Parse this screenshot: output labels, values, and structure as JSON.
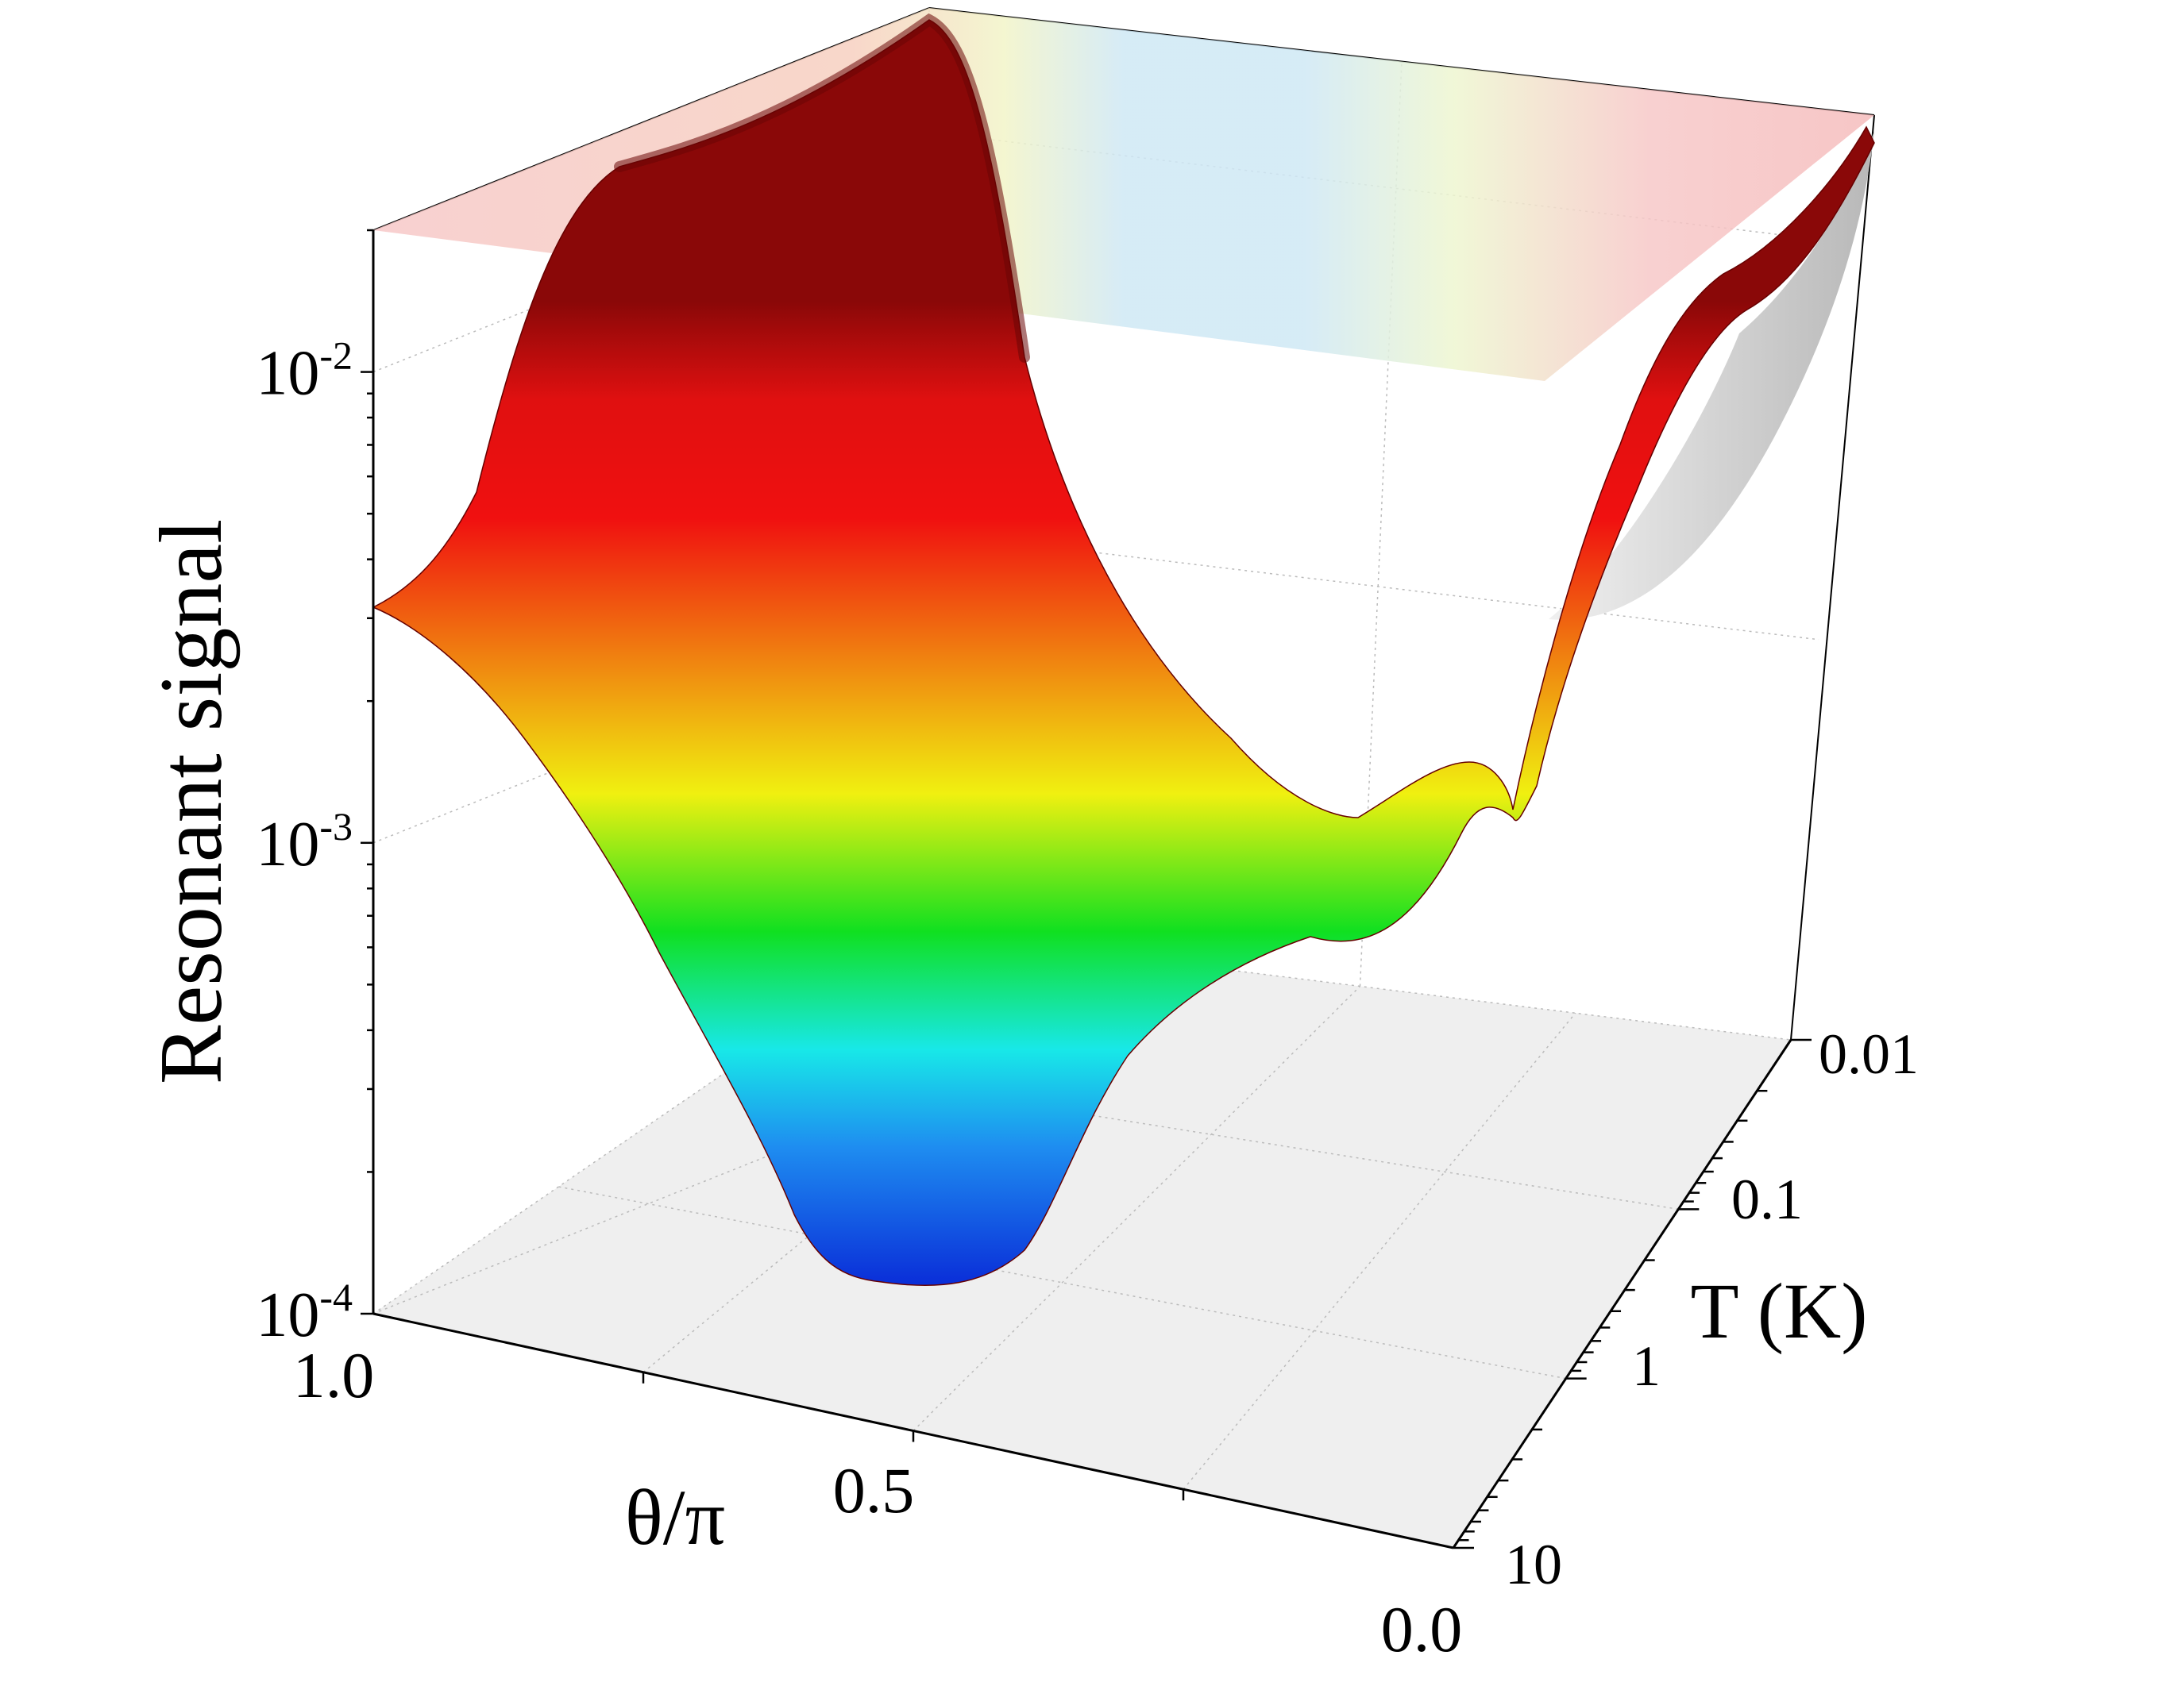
{
  "chart_data": {
    "type": "surface3d",
    "title": "",
    "zlabel": "Resonant signal",
    "xlabel": "θ/π",
    "ylabel": "T (K)",
    "z_scale": "log",
    "y_scale": "log",
    "xlim": [
      0.0,
      1.0
    ],
    "ylim": [
      0.01,
      10
    ],
    "zlim": [
      0.0001,
      0.02
    ],
    "x_tick_labels": [
      {
        "value": 1.0,
        "label": "1.0"
      },
      {
        "value": 0.5,
        "label": "0.5"
      },
      {
        "value": 0.0,
        "label": "0.0"
      }
    ],
    "y_tick_labels": [
      {
        "value": 0.01,
        "label": "0.01"
      },
      {
        "value": 0.1,
        "label": "0.1"
      },
      {
        "value": 1,
        "label": "1"
      },
      {
        "value": 10,
        "label": "10"
      }
    ],
    "z_tick_labels": [
      {
        "value": 0.01,
        "mantissa": "10",
        "exponent": "-2"
      },
      {
        "value": 0.001,
        "mantissa": "10",
        "exponent": "-3"
      },
      {
        "value": 0.0001,
        "mantissa": "10",
        "exponent": "-4"
      }
    ],
    "surface_profile": {
      "theta": [
        0.0,
        0.05,
        0.1,
        0.15,
        0.2,
        0.25,
        0.3,
        0.35,
        0.4,
        0.45,
        0.5,
        0.55,
        0.6,
        0.65,
        0.7,
        0.75,
        0.8,
        0.85,
        0.9,
        0.95,
        1.0
      ],
      "signal_at_10K": [
        0.0033,
        0.0029,
        0.0021,
        0.0013,
        0.00075,
        0.00047,
        0.00033,
        0.00026,
        0.00019,
        0.00013,
        0.00011,
        0.00013,
        0.00019,
        0.00032,
        0.0006,
        0.0011,
        0.0019,
        0.0029,
        0.0036,
        0.0038,
        0.0033
      ],
      "signal_at_0.01K": [
        0.02,
        0.018,
        0.012,
        0.006,
        0.0025,
        0.0012,
        0.00095,
        0.00092,
        0.00092,
        0.00092,
        0.00092,
        0.00093,
        0.001,
        0.0013,
        0.0024,
        0.0048,
        0.009,
        0.013,
        0.015,
        0.0155,
        0.016
      ]
    },
    "grid": true,
    "colormap": [
      "#0a2dd8",
      "#1e8cf0",
      "#18e8e8",
      "#10e020",
      "#f0f010",
      "#f08010",
      "#f01010",
      "#880808"
    ],
    "top_projection": "contour"
  }
}
